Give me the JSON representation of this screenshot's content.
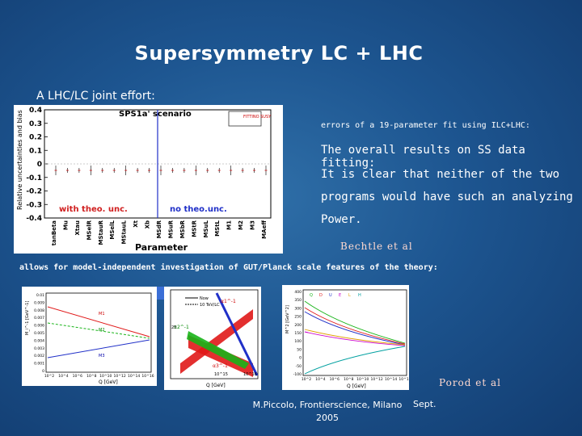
{
  "slide": {
    "title": "Supersymmetry LC + LHC",
    "subtitle": "A LHC/LC joint effort:",
    "errors_line": "errors of a 19-parameter fit using ILC+LHC:",
    "body_lines": [
      "The overall results on SS data fitting:",
      "It is clear that neither of the two",
      "programs would have such an analyzing",
      "Power."
    ],
    "author1": "Bechtle et al",
    "allows_line": "allows for model-independent investigation of GUT/Planck scale features of the theory:",
    "author2": "Porod et al",
    "footer_left": "M.Piccolo, Frontierscience, Milano 2005",
    "footer_right": "Sept."
  },
  "main_plot": {
    "title": "SPS1a' scenario",
    "logo_text": "FITTINO SUSY",
    "ylabel": "Relative uncertainties and bias",
    "xlabel": "Parameter",
    "yticks": [
      "0.4",
      "0.3",
      "0.2",
      "0.1",
      "0",
      "-0.1",
      "-0.2",
      "-0.3",
      "-0.4"
    ],
    "xticks": [
      "tanBeta",
      "Mu",
      "Xtau",
      "MSelR",
      "MStauR",
      "MSelL",
      "MStauL",
      "Xt",
      "Xb",
      "MSdR",
      "MSuR",
      "MSbR",
      "MStR",
      "MSuL",
      "MStL",
      "M1",
      "M2",
      "M3",
      "MAeff"
    ],
    "legend_left": "with theo. unc.",
    "legend_right": "no theo.unc."
  },
  "plot_a": {
    "ylabel": "M_i^-1 [GeV^-1]",
    "xlabel": "Q [GeV]",
    "yticks": [
      "0.01",
      "0.009",
      "0.008",
      "0.007",
      "0.006",
      "0.005",
      "0.004",
      "0.003",
      "0.002",
      "0.001",
      "0"
    ],
    "xticks": [
      "10^2",
      "10^4",
      "10^6",
      "10^8",
      "10^10",
      "10^12",
      "10^14",
      "10^16"
    ],
    "curve_labels": [
      "M1",
      "M2",
      "M3"
    ]
  },
  "plot_b": {
    "legend": "Now 10 TeV/LC",
    "legend_top": "Now",
    "legend_bottom": "10 TeV/LC",
    "ylabel": "α^-1",
    "xlabel": "Q [GeV]",
    "labels": [
      "α1^-1",
      "α2^-1",
      "α3^-1"
    ],
    "yticks": [
      "25"
    ],
    "xticks": [
      "10^15",
      "10^16"
    ]
  },
  "plot_c": {
    "ylabel": "M^2 [GeV^2]",
    "xlabel": "Q [GeV]",
    "legend": [
      "Q",
      "D",
      "U",
      "E",
      "L",
      "H"
    ],
    "yticks": [
      "400",
      "350",
      "300",
      "250",
      "200",
      "150",
      "100",
      "50",
      "0",
      "-50",
      "-100"
    ],
    "xticks": [
      "10^2",
      "10^4",
      "10^6",
      "10^8",
      "10^10",
      "10^12",
      "10^14",
      "10^16"
    ]
  },
  "colors": {
    "background": "#1d5590",
    "accent_box": "#3b6fd6",
    "red": "#e01818",
    "green": "#18b418",
    "blue": "#2030c8"
  }
}
